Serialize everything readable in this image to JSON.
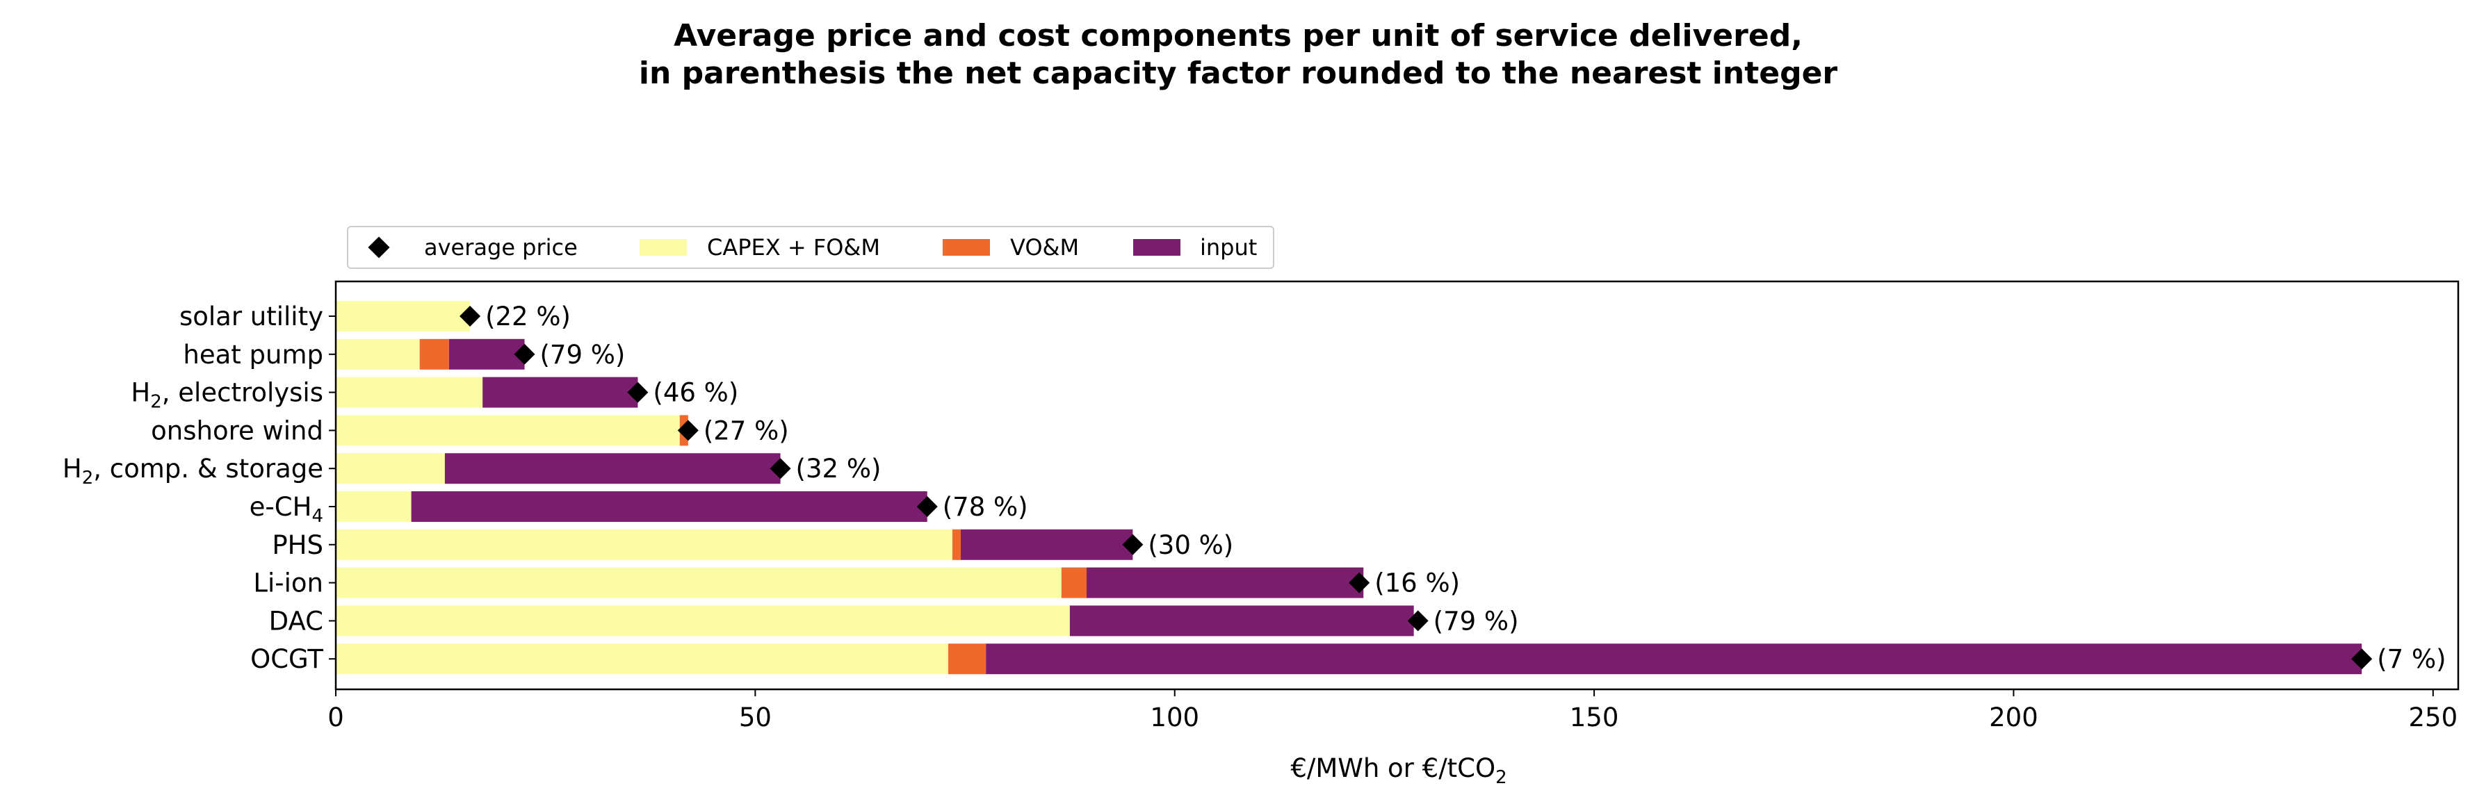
{
  "chart_data": {
    "type": "bar",
    "orientation": "horizontal",
    "stacked": true,
    "title": "Average price and cost components per unit of service delivered,",
    "subtitle": "in parenthesis the net capacity factor rounded to the nearest integer",
    "xlabel": "€/MWh or €/tCO",
    "xlabel_sub": "2",
    "ylabel": "",
    "xlim": [
      0,
      253
    ],
    "xticks": [
      0,
      50,
      100,
      150,
      200,
      250
    ],
    "grid": false,
    "legend_position": "top-left, above plot",
    "legend": [
      {
        "name": "average price",
        "marker": "diamond",
        "color": "#000000"
      },
      {
        "name": "CAPEX + FO&M",
        "color": "#fcfca4"
      },
      {
        "name": "VO&M",
        "color": "#f0692c"
      },
      {
        "name": "input",
        "color": "#7a1d6c"
      }
    ],
    "categories": [
      {
        "label": "solar utility",
        "sub": "",
        "post": ""
      },
      {
        "label": "heat pump",
        "sub": "",
        "post": ""
      },
      {
        "label": "H",
        "sub": "2",
        "post": ", electrolysis"
      },
      {
        "label": "onshore wind",
        "sub": "",
        "post": ""
      },
      {
        "label": "H",
        "sub": "2",
        "post": ", comp. & storage"
      },
      {
        "label": "e-CH",
        "sub": "4",
        "post": ""
      },
      {
        "label": "PHS",
        "sub": "",
        "post": ""
      },
      {
        "label": "Li-ion",
        "sub": "",
        "post": ""
      },
      {
        "label": "DAC",
        "sub": "",
        "post": ""
      },
      {
        "label": "OCGT",
        "sub": "",
        "post": ""
      }
    ],
    "series": [
      {
        "name": "CAPEX + FO&M",
        "color": "#fcfca4",
        "values": [
          16,
          10,
          17.5,
          41,
          13,
          9,
          73.5,
          86.5,
          87.5,
          73
        ]
      },
      {
        "name": "VO&M",
        "color": "#f0692c",
        "values": [
          0,
          3.5,
          0,
          1,
          0,
          0,
          1,
          3,
          0,
          4.5
        ]
      },
      {
        "name": "input",
        "color": "#7a1d6c",
        "values": [
          0,
          9,
          18.5,
          0,
          40,
          61.5,
          20.5,
          33,
          41,
          164
        ]
      }
    ],
    "average_price": [
      16,
      22.5,
      36,
      42,
      53,
      70.5,
      95,
      122,
      129,
      241.5
    ],
    "capacity_factor_labels": [
      "(22 %)",
      "(79 %)",
      "(46 %)",
      "(27 %)",
      "(32 %)",
      "(78 %)",
      "(30 %)",
      "(16 %)",
      "(79 %)",
      "(7 %)"
    ]
  }
}
